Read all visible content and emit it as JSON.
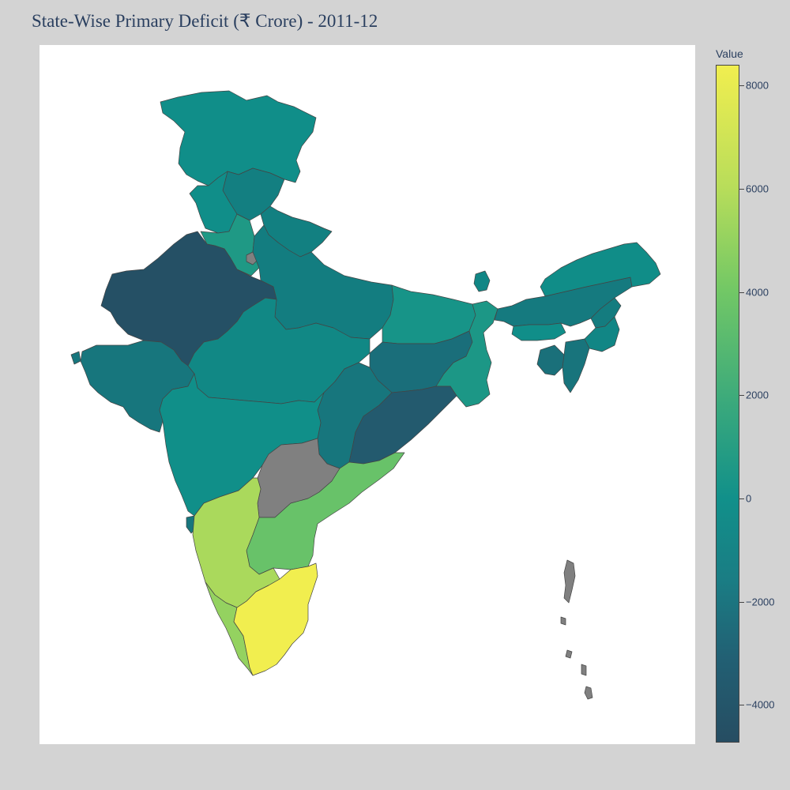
{
  "title": "State-Wise Primary Deficit (₹ Crore) - 2011-12",
  "colorbar": {
    "title": "Value",
    "ticks": [
      "8000",
      "6000",
      "4000",
      "2000",
      "0",
      "−2000",
      "−4000"
    ],
    "range": [
      -4700,
      8400
    ]
  },
  "colors": {
    "no_data": "#808080",
    "background": "#d3d3d3",
    "plot_bg": "#ffffff"
  },
  "chart_data": {
    "type": "choropleth",
    "title": "State-Wise Primary Deficit (₹ Crore) - 2011-12",
    "color_scale": "viridis-like",
    "zrange": [
      -4700,
      8400
    ],
    "regions": [
      {
        "name": "Jammu & Kashmir",
        "value": 1600
      },
      {
        "name": "Himachal Pradesh",
        "value": -200
      },
      {
        "name": "Punjab",
        "value": 1600
      },
      {
        "name": "Haryana",
        "value": 2400
      },
      {
        "name": "Delhi",
        "value": null
      },
      {
        "name": "Uttarakhand",
        "value": -100
      },
      {
        "name": "Uttar Pradesh",
        "value": -300
      },
      {
        "name": "Rajasthan",
        "value": -4300
      },
      {
        "name": "Gujarat",
        "value": -800
      },
      {
        "name": "Madhya Pradesh",
        "value": 800
      },
      {
        "name": "Bihar",
        "value": 2100
      },
      {
        "name": "Jharkhand",
        "value": -1300
      },
      {
        "name": "West Bengal",
        "value": 2300
      },
      {
        "name": "Chhattisgarh",
        "value": -800
      },
      {
        "name": "Odisha",
        "value": -3000
      },
      {
        "name": "Maharashtra",
        "value": 1700
      },
      {
        "name": "Goa",
        "value": -800
      },
      {
        "name": "Telangana",
        "value": null
      },
      {
        "name": "Andhra Pradesh",
        "value": 4900
      },
      {
        "name": "Karnataka",
        "value": 6500
      },
      {
        "name": "Kerala",
        "value": 6000
      },
      {
        "name": "Tamil Nadu",
        "value": 8400
      },
      {
        "name": "Sikkim",
        "value": 600
      },
      {
        "name": "Assam",
        "value": -500
      },
      {
        "name": "Arunachal Pradesh",
        "value": 1400
      },
      {
        "name": "Meghalaya",
        "value": 1600
      },
      {
        "name": "Nagaland",
        "value": -400
      },
      {
        "name": "Manipur",
        "value": 600
      },
      {
        "name": "Mizoram",
        "value": -900
      },
      {
        "name": "Tripura",
        "value": -1200
      },
      {
        "name": "Andaman & Nicobar",
        "value": null
      }
    ]
  }
}
